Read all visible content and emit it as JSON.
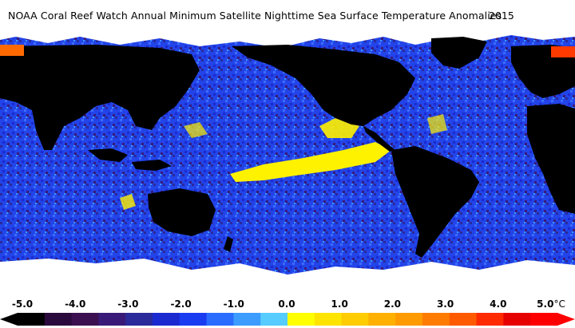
{
  "title": "NOAA Coral Reef Watch Annual Minimum Satellite Nighttime Sea Surface Temperature Anomalies",
  "year": "2015",
  "legend": {
    "ticks": [
      "-5.0",
      "-4.0",
      "-3.0",
      "-2.0",
      "-1.0",
      "0.0",
      "1.0",
      "2.0",
      "3.0",
      "4.0",
      "5.0"
    ],
    "unit": "°C",
    "colors": [
      "#000000",
      "#2a0a3c",
      "#3c1050",
      "#3a1a78",
      "#2a2a9a",
      "#1a2ad0",
      "#1a3cf0",
      "#2a6cff",
      "#3c9cff",
      "#56ccff",
      "#ffff00",
      "#ffe400",
      "#ffcc00",
      "#ffb000",
      "#ff9a00",
      "#ff7c00",
      "#ff5a00",
      "#ff2a00",
      "#e60000",
      "#ff0000"
    ]
  },
  "map_colors": {
    "land": "#000000",
    "ice": "#ffffff",
    "ocean": "#1f49e6",
    "ocean_dark": "#2a1f8a",
    "warm": "#fff200"
  }
}
